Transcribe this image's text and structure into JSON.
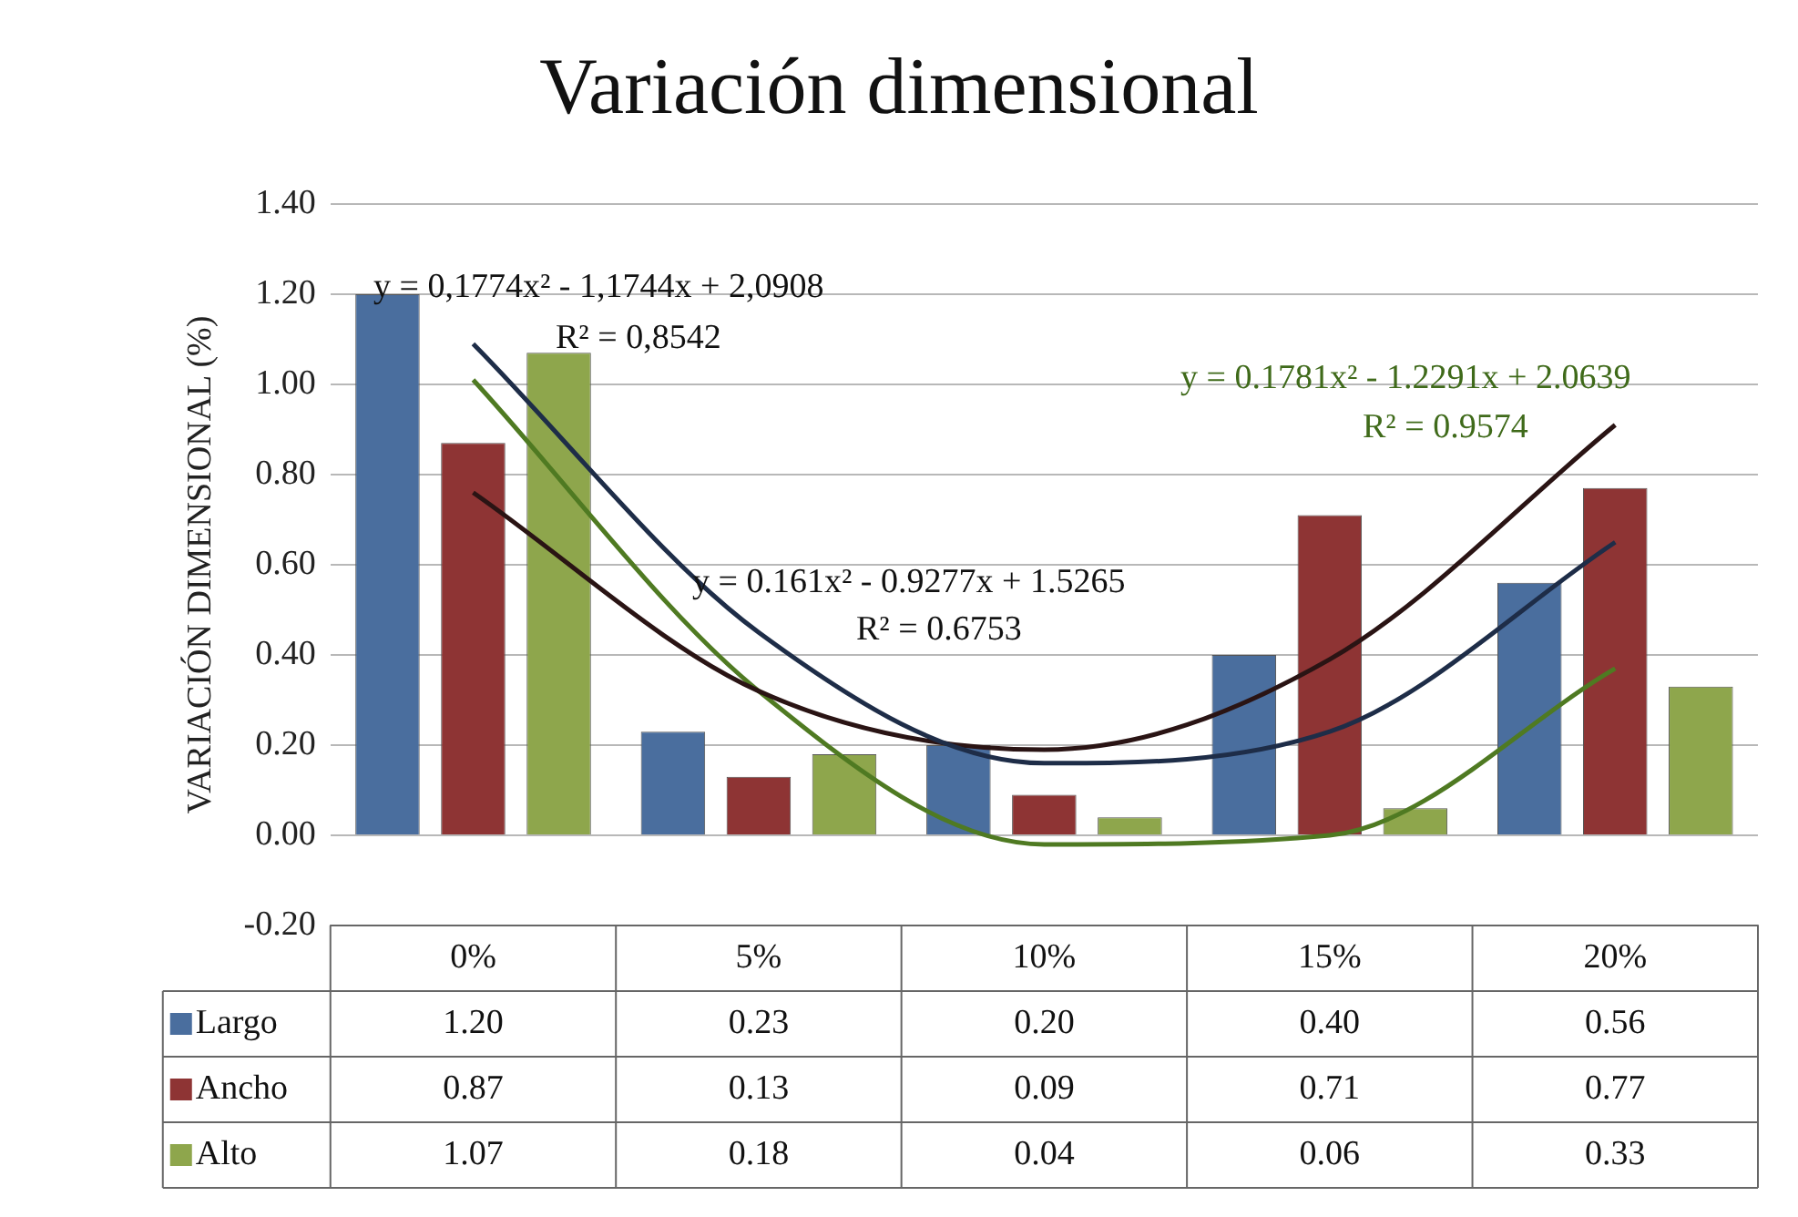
{
  "chart_data": {
    "type": "bar",
    "title": "Variación dimensional",
    "ylabel": "VARIACIÓN DIMENSIONAL (%)",
    "categories": [
      "0%",
      "5%",
      "10%",
      "15%",
      "20%"
    ],
    "series": [
      {
        "name": "Largo",
        "color": "#4a6e9e",
        "values": [
          1.2,
          0.23,
          0.2,
          0.4,
          0.56
        ],
        "value_labels": [
          "1.20",
          "0.23",
          "0.20",
          "0.40",
          "0.56"
        ]
      },
      {
        "name": "Ancho",
        "color": "#8e3434",
        "values": [
          0.87,
          0.13,
          0.09,
          0.71,
          0.77
        ],
        "value_labels": [
          "0.87",
          "0.13",
          "0.09",
          "0.71",
          "0.77"
        ]
      },
      {
        "name": "Alto",
        "color": "#8ea64c",
        "values": [
          1.07,
          0.18,
          0.04,
          0.06,
          0.33
        ],
        "value_labels": [
          "1.07",
          "0.18",
          "0.04",
          "0.06",
          "0.33"
        ]
      },
      {
        "type": "line",
        "color": "#1e2d48",
        "values": [
          1.09,
          0.45,
          0.16,
          0.23,
          0.65
        ]
      },
      {
        "type": "line",
        "color": "#2a1414",
        "values": [
          0.76,
          0.32,
          0.19,
          0.39,
          0.91
        ]
      },
      {
        "type": "line",
        "color": "#4f7a22",
        "values": [
          1.01,
          0.32,
          -0.02,
          0,
          0.37
        ]
      }
    ],
    "ylim": [
      -0.2,
      1.4
    ],
    "yticks": [
      {
        "value": -0.2,
        "label": "-0.20"
      },
      {
        "value": 0,
        "label": "0.00"
      },
      {
        "value": 0.2,
        "label": "0.20"
      },
      {
        "value": 0.4,
        "label": "0.40"
      },
      {
        "value": 0.6,
        "label": "0.60"
      },
      {
        "value": 0.8,
        "label": "0.80"
      },
      {
        "value": 1,
        "label": "1.00"
      },
      {
        "value": 1.2,
        "label": "1.20"
      },
      {
        "value": 1.4,
        "label": "1.40"
      }
    ],
    "grid": "y",
    "legend": "bottom",
    "marker": "none",
    "line_style": "solid",
    "annotations": [
      "y = 0,1774x² - 1,1744x + 2,0908",
      "R² = 0,8542",
      "y = 0.1781x² - 1.2291x + 2.0639",
      "R² = 0.9574",
      "y = 0.161x² - 0.9277x + 1.5265",
      "R² = 0.6753"
    ]
  }
}
